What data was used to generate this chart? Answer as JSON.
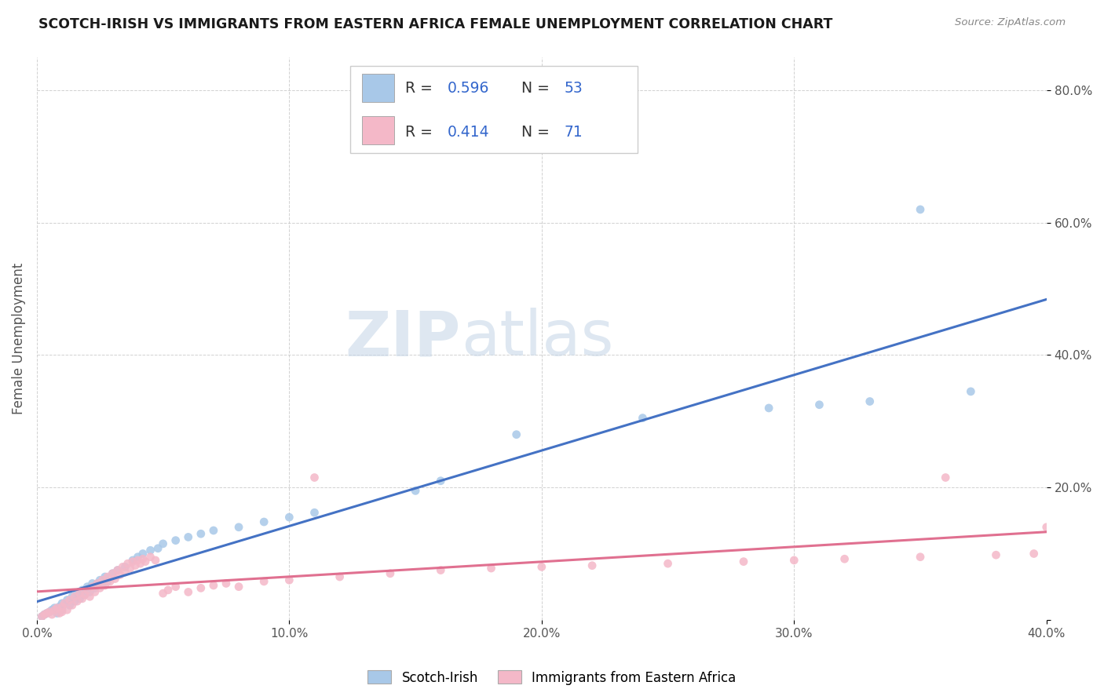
{
  "title": "SCOTCH-IRISH VS IMMIGRANTS FROM EASTERN AFRICA FEMALE UNEMPLOYMENT CORRELATION CHART",
  "source": "Source: ZipAtlas.com",
  "ylabel": "Female Unemployment",
  "xlim": [
    0.0,
    0.4
  ],
  "ylim": [
    0.0,
    0.85
  ],
  "x_ticks": [
    0.0,
    0.1,
    0.2,
    0.3,
    0.4
  ],
  "x_tick_labels": [
    "0.0%",
    "10.0%",
    "20.0%",
    "30.0%",
    "40.0%"
  ],
  "y_ticks": [
    0.0,
    0.2,
    0.4,
    0.6,
    0.8
  ],
  "y_tick_labels": [
    "",
    "20.0%",
    "40.0%",
    "60.0%",
    "80.0%"
  ],
  "blue_R": 0.596,
  "blue_N": 53,
  "pink_R": 0.414,
  "pink_N": 71,
  "blue_color": "#a8c8e8",
  "pink_color": "#f4b8c8",
  "blue_line_color": "#4472c4",
  "pink_line_color": "#e07090",
  "scatter_alpha": 0.85,
  "blue_scatter": [
    [
      0.002,
      0.005
    ],
    [
      0.003,
      0.008
    ],
    [
      0.004,
      0.01
    ],
    [
      0.005,
      0.012
    ],
    [
      0.006,
      0.015
    ],
    [
      0.007,
      0.018
    ],
    [
      0.008,
      0.01
    ],
    [
      0.009,
      0.02
    ],
    [
      0.01,
      0.025
    ],
    [
      0.01,
      0.015
    ],
    [
      0.012,
      0.03
    ],
    [
      0.013,
      0.022
    ],
    [
      0.014,
      0.035
    ],
    [
      0.015,
      0.028
    ],
    [
      0.016,
      0.04
    ],
    [
      0.017,
      0.032
    ],
    [
      0.018,
      0.045
    ],
    [
      0.019,
      0.038
    ],
    [
      0.02,
      0.05
    ],
    [
      0.021,
      0.042
    ],
    [
      0.022,
      0.055
    ],
    [
      0.023,
      0.048
    ],
    [
      0.024,
      0.055
    ],
    [
      0.025,
      0.06
    ],
    [
      0.026,
      0.052
    ],
    [
      0.027,
      0.065
    ],
    [
      0.028,
      0.058
    ],
    [
      0.03,
      0.07
    ],
    [
      0.032,
      0.075
    ],
    [
      0.035,
      0.08
    ],
    [
      0.038,
      0.09
    ],
    [
      0.04,
      0.095
    ],
    [
      0.042,
      0.1
    ],
    [
      0.045,
      0.105
    ],
    [
      0.048,
      0.108
    ],
    [
      0.05,
      0.115
    ],
    [
      0.055,
      0.12
    ],
    [
      0.06,
      0.125
    ],
    [
      0.065,
      0.13
    ],
    [
      0.07,
      0.135
    ],
    [
      0.08,
      0.14
    ],
    [
      0.09,
      0.148
    ],
    [
      0.1,
      0.155
    ],
    [
      0.11,
      0.162
    ],
    [
      0.15,
      0.195
    ],
    [
      0.16,
      0.21
    ],
    [
      0.19,
      0.28
    ],
    [
      0.24,
      0.305
    ],
    [
      0.29,
      0.32
    ],
    [
      0.31,
      0.325
    ],
    [
      0.33,
      0.33
    ],
    [
      0.37,
      0.345
    ],
    [
      0.35,
      0.62
    ]
  ],
  "pink_scatter": [
    [
      0.002,
      0.005
    ],
    [
      0.003,
      0.008
    ],
    [
      0.004,
      0.01
    ],
    [
      0.005,
      0.012
    ],
    [
      0.006,
      0.008
    ],
    [
      0.007,
      0.015
    ],
    [
      0.008,
      0.018
    ],
    [
      0.009,
      0.01
    ],
    [
      0.01,
      0.02
    ],
    [
      0.01,
      0.012
    ],
    [
      0.011,
      0.025
    ],
    [
      0.012,
      0.015
    ],
    [
      0.013,
      0.03
    ],
    [
      0.014,
      0.022
    ],
    [
      0.015,
      0.035
    ],
    [
      0.016,
      0.028
    ],
    [
      0.017,
      0.04
    ],
    [
      0.018,
      0.032
    ],
    [
      0.019,
      0.038
    ],
    [
      0.02,
      0.045
    ],
    [
      0.021,
      0.035
    ],
    [
      0.022,
      0.05
    ],
    [
      0.023,
      0.042
    ],
    [
      0.024,
      0.055
    ],
    [
      0.025,
      0.048
    ],
    [
      0.026,
      0.06
    ],
    [
      0.027,
      0.052
    ],
    [
      0.028,
      0.065
    ],
    [
      0.029,
      0.058
    ],
    [
      0.03,
      0.07
    ],
    [
      0.031,
      0.062
    ],
    [
      0.032,
      0.075
    ],
    [
      0.033,
      0.068
    ],
    [
      0.034,
      0.08
    ],
    [
      0.035,
      0.072
    ],
    [
      0.036,
      0.085
    ],
    [
      0.037,
      0.078
    ],
    [
      0.038,
      0.088
    ],
    [
      0.039,
      0.082
    ],
    [
      0.04,
      0.09
    ],
    [
      0.041,
      0.085
    ],
    [
      0.042,
      0.092
    ],
    [
      0.043,
      0.088
    ],
    [
      0.045,
      0.095
    ],
    [
      0.047,
      0.09
    ],
    [
      0.05,
      0.04
    ],
    [
      0.052,
      0.045
    ],
    [
      0.055,
      0.05
    ],
    [
      0.06,
      0.042
    ],
    [
      0.065,
      0.048
    ],
    [
      0.07,
      0.052
    ],
    [
      0.075,
      0.055
    ],
    [
      0.08,
      0.05
    ],
    [
      0.09,
      0.058
    ],
    [
      0.1,
      0.06
    ],
    [
      0.11,
      0.215
    ],
    [
      0.12,
      0.065
    ],
    [
      0.14,
      0.07
    ],
    [
      0.16,
      0.075
    ],
    [
      0.18,
      0.078
    ],
    [
      0.2,
      0.08
    ],
    [
      0.22,
      0.082
    ],
    [
      0.25,
      0.085
    ],
    [
      0.28,
      0.088
    ],
    [
      0.3,
      0.09
    ],
    [
      0.32,
      0.092
    ],
    [
      0.35,
      0.095
    ],
    [
      0.36,
      0.215
    ],
    [
      0.38,
      0.098
    ],
    [
      0.395,
      0.1
    ],
    [
      0.4,
      0.14
    ]
  ],
  "watermark_zip": "ZIP",
  "watermark_atlas": "atlas",
  "legend_label_blue": "Scotch-Irish",
  "legend_label_pink": "Immigrants from Eastern Africa",
  "background_color": "#ffffff",
  "plot_bg_color": "#ffffff",
  "grid_color": "#cccccc"
}
